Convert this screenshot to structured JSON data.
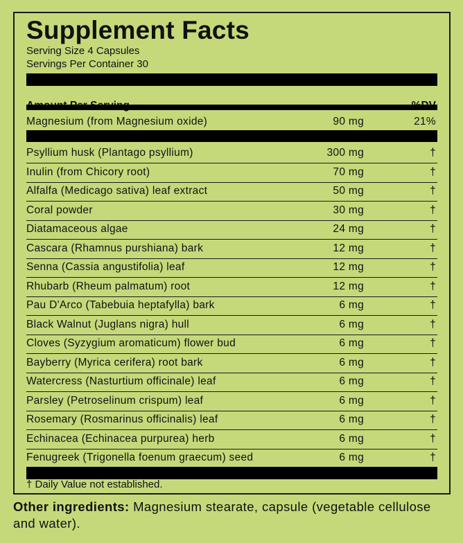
{
  "title": "Supplement Facts",
  "serving_size": "Serving Size 4 Capsules",
  "servings_per_container": "Servings Per Container 30",
  "header": {
    "amount": "Amount Per Serving",
    "dv": "%DV"
  },
  "primary": {
    "name": "Magnesium (from Magnesium oxide)",
    "amount": "90 mg",
    "dv": "21%"
  },
  "ingredients": [
    {
      "name": "Psyllium husk (Plantago psyllium)",
      "amount": "300 mg",
      "dv": "†"
    },
    {
      "name": "Inulin (from Chicory root)",
      "amount": "70 mg",
      "dv": "†"
    },
    {
      "name": "Alfalfa (Medicago sativa) leaf extract",
      "amount": "50 mg",
      "dv": "†"
    },
    {
      "name": "Coral powder",
      "amount": "30 mg",
      "dv": "†"
    },
    {
      "name": "Diatamaceous algae",
      "amount": "24 mg",
      "dv": "†"
    },
    {
      "name": "Cascara (Rhamnus purshiana) bark",
      "amount": "12 mg",
      "dv": "†"
    },
    {
      "name": "Senna (Cassia angustifolia) leaf",
      "amount": "12 mg",
      "dv": "†"
    },
    {
      "name": "Rhubarb (Rheum palmatum) root",
      "amount": "12 mg",
      "dv": "†"
    },
    {
      "name": "Pau D'Arco (Tabebuia heptafylla) bark",
      "amount": "6 mg",
      "dv": "†"
    },
    {
      "name": "Black Walnut (Juglans nigra) hull",
      "amount": "6 mg",
      "dv": "†"
    },
    {
      "name": "Cloves (Syzygium aromaticum) flower bud",
      "amount": "6 mg",
      "dv": "†"
    },
    {
      "name": "Bayberry (Myrica cerifera) root bark",
      "amount": "6 mg",
      "dv": "†"
    },
    {
      "name": "Watercress (Nasturtium officinale) leaf",
      "amount": "6 mg",
      "dv": "†"
    },
    {
      "name": "Parsley (Petroselinum crispum) leaf",
      "amount": "6 mg",
      "dv": "†"
    },
    {
      "name": "Rosemary (Rosmarinus officinalis) leaf",
      "amount": "6 mg",
      "dv": "†"
    },
    {
      "name": "Echinacea (Echinacea purpurea) herb",
      "amount": "6 mg",
      "dv": "†"
    },
    {
      "name": "Fenugreek (Trigonella foenum graecum) seed",
      "amount": "6 mg",
      "dv": "†"
    }
  ],
  "footnote": "† Daily Value not established.",
  "other_ingredients": {
    "label": "Other ingredients:",
    "text": " Magnesium stearate, capsule (vegetable cellulose and water)."
  },
  "colors": {
    "background": "#c5d97b",
    "ink": "#000000"
  }
}
